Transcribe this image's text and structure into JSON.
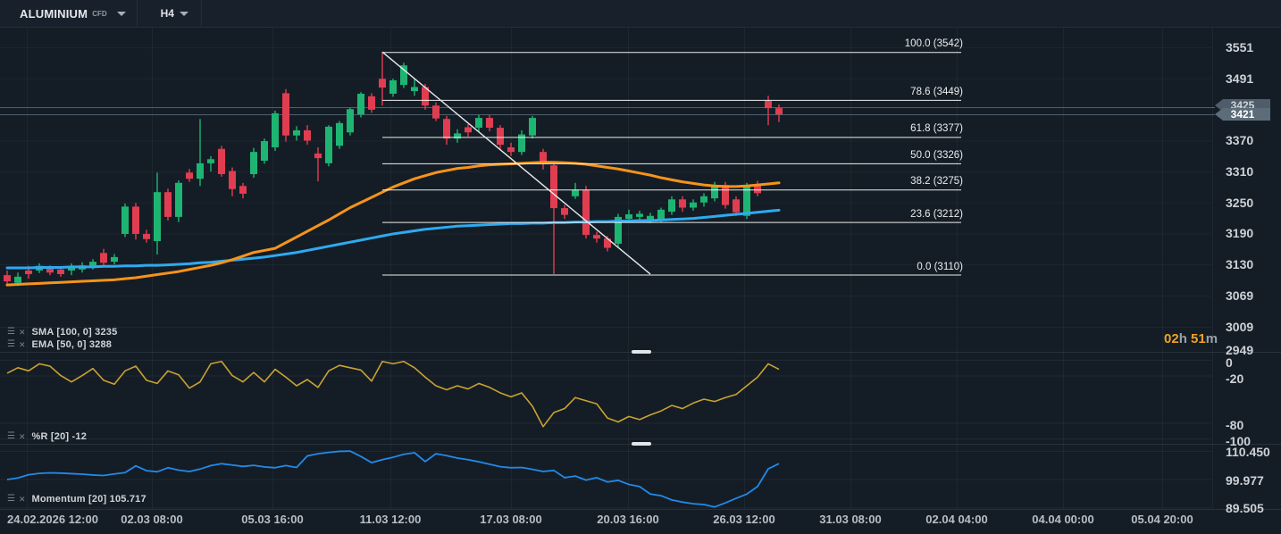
{
  "topbar": {
    "symbol": "ALUMINIUM",
    "symbol_type": "CFD",
    "timeframe": "H4"
  },
  "countdown": {
    "hours": "02",
    "hours_unit": "h",
    "minutes": "51",
    "minutes_unit": "m"
  },
  "price_tags": {
    "upper": "3425",
    "current": "3421"
  },
  "indicator_labels": {
    "sma": "SMA [100, 0] 3235",
    "ema": "EMA [50, 0] 3288",
    "percent_r": "%R [20] -12",
    "momentum": "Momentum [20] 105.717"
  },
  "colors": {
    "background": "#141d25",
    "up": "#1eb573",
    "down": "#e13d51",
    "ema": "#f7931a",
    "sma": "#2eaaf0",
    "percent_r": "#c9a232",
    "momentum": "#2389e8",
    "fib": "#ffffff",
    "trendline": "#e9eaeb",
    "price_line": "#4e6070",
    "tag_bg": "#5d6c79",
    "tag_bg_back": "#49586430",
    "countdown": "#f0a225"
  },
  "chart_data": {
    "type": "candlestick",
    "title": "ALUMINIUM CFD H4",
    "current_price": 3421,
    "secondary_price": 3425,
    "price_axis_ticks": [
      "3551",
      "3491",
      "3370",
      "3310",
      "3250",
      "3190",
      "3130",
      "3069",
      "3009",
      "2949"
    ],
    "time_axis_ticks": [
      "24.02.2026 12:00",
      "02.03 08:00",
      "05.03 16:00",
      "11.03 12:00",
      "17.03 08:00",
      "20.03 16:00",
      "26.03 12:00",
      "31.03 08:00",
      "02.04 04:00",
      "04.04 00:00",
      "05.04 20:00"
    ],
    "fibonacci": [
      {
        "pct": "100.0",
        "price": 3542
      },
      {
        "pct": "78.6",
        "price": 3449
      },
      {
        "pct": "61.8",
        "price": 3377
      },
      {
        "pct": "50.0",
        "price": 3326
      },
      {
        "pct": "38.2",
        "price": 3275
      },
      {
        "pct": "23.6",
        "price": 3212
      },
      {
        "pct": "0.0",
        "price": 3110
      }
    ],
    "trendline": {
      "from_price": 3542,
      "to_price": 3111
    },
    "candles": [
      [
        3109,
        3118,
        3092,
        3097
      ],
      [
        3094,
        3114,
        3088,
        3106
      ],
      [
        3118,
        3127,
        3102,
        3111
      ],
      [
        3118,
        3132,
        3113,
        3127
      ],
      [
        3123,
        3128,
        3109,
        3114
      ],
      [
        3120,
        3125,
        3106,
        3111
      ],
      [
        3118,
        3132,
        3109,
        3123
      ],
      [
        3120,
        3134,
        3114,
        3128
      ],
      [
        3127,
        3140,
        3120,
        3135
      ],
      [
        3152,
        3160,
        3128,
        3133
      ],
      [
        3135,
        3150,
        3130,
        3144
      ],
      [
        3189,
        3248,
        3183,
        3242
      ],
      [
        3242,
        3249,
        3178,
        3189
      ],
      [
        3189,
        3197,
        3172,
        3179
      ],
      [
        3175,
        3308,
        3149,
        3270
      ],
      [
        3270,
        3277,
        3215,
        3222
      ],
      [
        3222,
        3293,
        3212,
        3288
      ],
      [
        3308,
        3315,
        3290,
        3296
      ],
      [
        3296,
        3412,
        3282,
        3326
      ],
      [
        3326,
        3340,
        3310,
        3334
      ],
      [
        3354,
        3360,
        3300,
        3305
      ],
      [
        3311,
        3318,
        3262,
        3276
      ],
      [
        3282,
        3288,
        3258,
        3267
      ],
      [
        3305,
        3356,
        3298,
        3348
      ],
      [
        3331,
        3374,
        3325,
        3369
      ],
      [
        3357,
        3428,
        3350,
        3423
      ],
      [
        3462,
        3470,
        3368,
        3380
      ],
      [
        3380,
        3398,
        3370,
        3390
      ],
      [
        3390,
        3400,
        3362,
        3370
      ],
      [
        3345,
        3357,
        3291,
        3336
      ],
      [
        3326,
        3400,
        3320,
        3397
      ],
      [
        3360,
        3408,
        3354,
        3404
      ],
      [
        3386,
        3434,
        3380,
        3431
      ],
      [
        3421,
        3464,
        3415,
        3461
      ],
      [
        3456,
        3462,
        3424,
        3430
      ],
      [
        3490,
        3542,
        3438,
        3473
      ],
      [
        3461,
        3490,
        3455,
        3487
      ],
      [
        3478,
        3521,
        3472,
        3516
      ],
      [
        3466,
        3490,
        3457,
        3474
      ],
      [
        3474,
        3480,
        3430,
        3438
      ],
      [
        3438,
        3444,
        3408,
        3413
      ],
      [
        3412,
        3418,
        3362,
        3374
      ],
      [
        3374,
        3392,
        3366,
        3384
      ],
      [
        3396,
        3402,
        3378,
        3386
      ],
      [
        3395,
        3420,
        3388,
        3414
      ],
      [
        3414,
        3420,
        3388,
        3395
      ],
      [
        3395,
        3400,
        3354,
        3362
      ],
      [
        3357,
        3366,
        3340,
        3348
      ],
      [
        3348,
        3390,
        3342,
        3382
      ],
      [
        3380,
        3418,
        3374,
        3414
      ],
      [
        3348,
        3354,
        3314,
        3326
      ],
      [
        3322,
        3328,
        3111,
        3239
      ],
      [
        3239,
        3245,
        3218,
        3226
      ],
      [
        3262,
        3288,
        3257,
        3274
      ],
      [
        3274,
        3282,
        3180,
        3187
      ],
      [
        3187,
        3193,
        3172,
        3180
      ],
      [
        3180,
        3185,
        3155,
        3162
      ],
      [
        3170,
        3228,
        3163,
        3222
      ],
      [
        3218,
        3236,
        3213,
        3227
      ],
      [
        3222,
        3234,
        3214,
        3228
      ],
      [
        3216,
        3230,
        3210,
        3224
      ],
      [
        3218,
        3240,
        3212,
        3236
      ],
      [
        3232,
        3262,
        3226,
        3256
      ],
      [
        3256,
        3262,
        3232,
        3240
      ],
      [
        3240,
        3256,
        3234,
        3250
      ],
      [
        3250,
        3268,
        3242,
        3262
      ],
      [
        3258,
        3290,
        3252,
        3284
      ],
      [
        3284,
        3290,
        3238,
        3245
      ],
      [
        3256,
        3262,
        3224,
        3231
      ],
      [
        3224,
        3288,
        3218,
        3284
      ],
      [
        3282,
        3292,
        3262,
        3268
      ],
      [
        3447,
        3457,
        3400,
        3433
      ],
      [
        3433,
        3440,
        3406,
        3421
      ]
    ],
    "overlays": {
      "sma100": [
        3123,
        3123,
        3123,
        3124,
        3124,
        3124,
        3125,
        3125,
        3125,
        3126,
        3126,
        3127,
        3127,
        3128,
        3128,
        3129,
        3130,
        3131,
        3133,
        3134,
        3136,
        3138,
        3140,
        3142,
        3144,
        3147,
        3150,
        3153,
        3157,
        3161,
        3165,
        3169,
        3173,
        3177,
        3181,
        3185,
        3189,
        3192,
        3195,
        3198,
        3200,
        3202,
        3204,
        3205,
        3206,
        3207,
        3208,
        3209,
        3209,
        3210,
        3210,
        3211,
        3211,
        3212,
        3212,
        3213,
        3213,
        3214,
        3214,
        3215,
        3215,
        3216,
        3217,
        3218,
        3219,
        3221,
        3223,
        3225,
        3227,
        3229,
        3231,
        3233,
        3235
      ],
      "ema50": [
        3090,
        3091,
        3092,
        3093,
        3094,
        3095,
        3096,
        3097,
        3098,
        3099,
        3100,
        3102,
        3104,
        3107,
        3110,
        3113,
        3116,
        3120,
        3124,
        3128,
        3133,
        3139,
        3146,
        3153,
        3157,
        3161,
        3172,
        3183,
        3194,
        3205,
        3216,
        3228,
        3240,
        3250,
        3260,
        3270,
        3280,
        3288,
        3296,
        3302,
        3308,
        3312,
        3316,
        3318,
        3321,
        3323,
        3324,
        3325,
        3326,
        3327,
        3328,
        3328,
        3327,
        3326,
        3324,
        3321,
        3318,
        3315,
        3311,
        3307,
        3303,
        3298,
        3294,
        3290,
        3287,
        3284,
        3282,
        3281,
        3281,
        3282,
        3284,
        3286,
        3288
      ]
    },
    "panels": {
      "percent_r": {
        "name": "%R",
        "period": 20,
        "last": -12,
        "axis_ticks": [
          "0",
          "-20",
          "-80",
          "-100"
        ],
        "values": [
          -17,
          -10,
          -14,
          -5,
          -8,
          -20,
          -28,
          -20,
          -11,
          -26,
          -31,
          -14,
          -8,
          -26,
          -30,
          -14,
          -19,
          -36,
          -28,
          -5,
          -2,
          -20,
          -28,
          -16,
          -28,
          -12,
          -22,
          -33,
          -25,
          -35,
          -14,
          -7,
          -10,
          -13,
          -27,
          -2,
          -5,
          -2,
          -10,
          -22,
          -33,
          -38,
          -33,
          -37,
          -30,
          -35,
          -42,
          -47,
          -42,
          -59,
          -85,
          -67,
          -62,
          -48,
          -52,
          -56,
          -74,
          -79,
          -72,
          -76,
          -70,
          -65,
          -58,
          -62,
          -55,
          -50,
          -53,
          -48,
          -44,
          -33,
          -22,
          -5,
          -12
        ]
      },
      "momentum": {
        "name": "Momentum",
        "period": 20,
        "last": 105.717,
        "axis_ticks": [
          "110.450",
          "99.977",
          "89.505"
        ],
        "values": [
          99.8,
          100.4,
          101.6,
          102.1,
          102.3,
          102.2,
          102.0,
          101.8,
          101.5,
          101.3,
          101.9,
          102.4,
          104.9,
          103.1,
          102.7,
          104.2,
          103.3,
          102.8,
          103.7,
          105.0,
          105.7,
          105.2,
          104.7,
          105.1,
          104.5,
          104.2,
          105.0,
          104.3,
          108.6,
          109.4,
          109.9,
          110.3,
          110.4,
          108.4,
          106.1,
          107.2,
          108.1,
          109.2,
          109.8,
          106.5,
          109.4,
          108.7,
          107.8,
          107.2,
          106.4,
          105.5,
          104.6,
          104.2,
          104.3,
          103.6,
          102.8,
          103.2,
          100.5,
          101.1,
          99.6,
          100.5,
          98.9,
          99.5,
          98.0,
          97.2,
          94.4,
          93.8,
          92.2,
          91.4,
          90.8,
          90.5,
          89.6,
          91.1,
          92.8,
          94.4,
          97.2,
          103.8,
          105.717
        ]
      }
    }
  }
}
